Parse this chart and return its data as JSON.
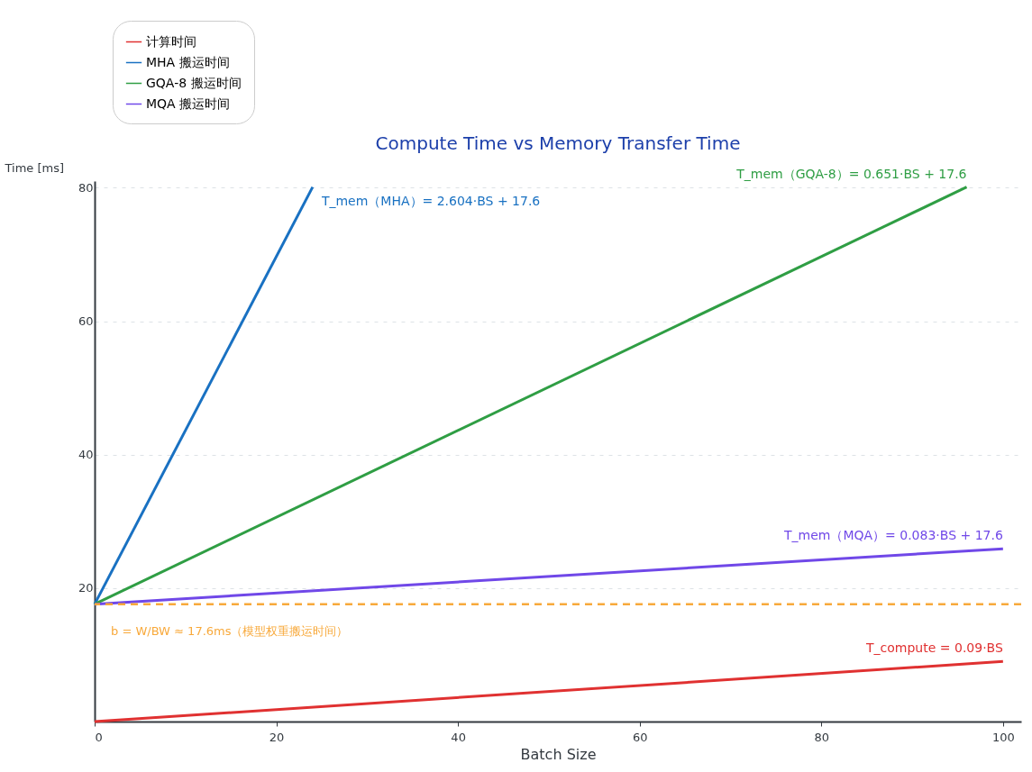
{
  "chart_data": {
    "type": "line",
    "title": "Compute Time vs Memory Transfer Time",
    "xlabel": "Batch Size",
    "ylabel": "Time [ms]",
    "xlim": [
      0,
      102
    ],
    "ylim": [
      0,
      81
    ],
    "xticks": [
      0,
      20,
      40,
      60,
      80,
      100
    ],
    "yticks": [
      20,
      40,
      60,
      80
    ],
    "grid": "y",
    "legend": "top left",
    "line_style": "solid",
    "marker": "none",
    "series": [
      {
        "name": "计算时间",
        "color": "#e03131",
        "x": [
          0,
          100
        ],
        "values": [
          0,
          9
        ]
      },
      {
        "name": "MHA 搬运时间",
        "color": "#1971c2",
        "x": [
          0,
          24
        ],
        "values": [
          17.6,
          80.1
        ]
      },
      {
        "name": "GQA-8 搬运时间",
        "color": "#2f9e44",
        "x": [
          0,
          96
        ],
        "values": [
          17.6,
          80.1
        ]
      },
      {
        "name": "MQA 搬运时间",
        "color": "#7048e8",
        "x": [
          0,
          100
        ],
        "values": [
          17.6,
          25.9
        ]
      }
    ],
    "ref_lines": [
      {
        "axis": "y",
        "value": 17.6,
        "label": "b = W/BW ≈ 17.6ms（模型权重搬运时间）",
        "color": "#f8a93b",
        "line_style": "dashed"
      }
    ],
    "annotations": [
      "T_compute = 0.09·BS",
      "T_mem（MHA）= 2.604·BS + 17.6",
      "T_mem（GQA-8）= 0.651·BS + 17.6",
      "T_mem（MQA）= 0.083·BS + 17.6"
    ]
  }
}
